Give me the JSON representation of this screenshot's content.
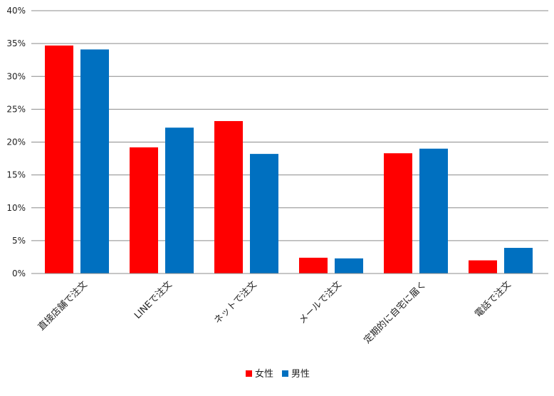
{
  "chart_data": {
    "type": "bar",
    "categories": [
      "直接店舗で注文",
      "LINEで注文",
      "ネットで注文",
      "メールで注文",
      "定期的に自宅に届く",
      "電話で注文"
    ],
    "series": [
      {
        "name": "女性",
        "color": "#ff0000",
        "values": [
          34.7,
          19.2,
          23.2,
          2.4,
          18.3,
          2.0
        ]
      },
      {
        "name": "男性",
        "color": "#0070c0",
        "values": [
          34.1,
          22.2,
          18.2,
          2.3,
          19.0,
          3.9
        ]
      }
    ],
    "ylim": [
      0,
      40
    ],
    "yticks": [
      "0%",
      "5%",
      "10%",
      "15%",
      "20%",
      "25%",
      "30%",
      "35%",
      "40%"
    ],
    "grid": true,
    "legend_position": "bottom",
    "title": "",
    "xlabel": "",
    "ylabel": ""
  }
}
